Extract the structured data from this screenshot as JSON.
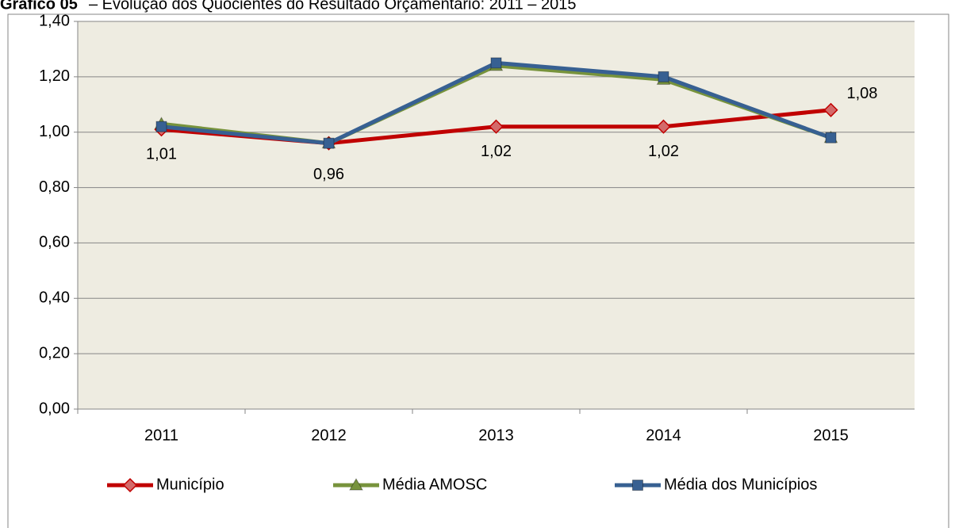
{
  "chart_data": {
    "type": "line",
    "figure_label": "Gráfico 05",
    "title": "– Evolução dos Quocientes do Resultado Orçamentário: 2011 – 2015",
    "categories": [
      "2011",
      "2012",
      "2013",
      "2014",
      "2015"
    ],
    "series": [
      {
        "name": "Município",
        "color": "#c00000",
        "marker": "diamond",
        "values": [
          1.01,
          0.96,
          1.02,
          1.02,
          1.08
        ],
        "value_labels": [
          "1,01",
          "0,96",
          "1,02",
          "1,02",
          "1,08"
        ]
      },
      {
        "name": "Média AMOSC",
        "color": "#77933c",
        "marker": "triangle",
        "values": [
          1.03,
          0.96,
          1.24,
          1.19,
          0.98
        ]
      },
      {
        "name": "Média dos Municípios",
        "color": "#376092",
        "marker": "square",
        "values": [
          1.02,
          0.96,
          1.25,
          1.2,
          0.98
        ]
      }
    ],
    "ylim": [
      0,
      1.4
    ],
    "yticks": [
      {
        "value": 0,
        "label": "0,00"
      },
      {
        "value": 0.2,
        "label": "0,20"
      },
      {
        "value": 0.4,
        "label": "0,40"
      },
      {
        "value": 0.6,
        "label": "0,60"
      },
      {
        "value": 0.8,
        "label": "0,80"
      },
      {
        "value": 1,
        "label": "1,00"
      },
      {
        "value": 1.2,
        "label": "1,20"
      },
      {
        "value": 1.4,
        "label": "1,40"
      }
    ],
    "grid": true,
    "legend": "bottom",
    "plot_background": "#eeece1"
  }
}
